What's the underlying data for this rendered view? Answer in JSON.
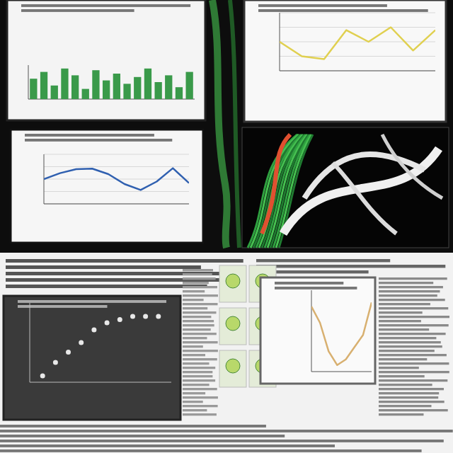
{
  "chart_data": [
    {
      "type": "bar",
      "values": [
        60,
        80,
        40,
        90,
        70,
        30,
        85,
        55,
        75,
        45,
        65,
        90,
        50,
        70,
        35,
        80
      ],
      "color": "#3a9a4a",
      "ylim": [
        0,
        100
      ],
      "tick_labels": false
    },
    {
      "type": "line",
      "values": [
        50,
        25,
        20,
        70,
        50,
        75,
        35,
        70
      ],
      "color": "#e0d050",
      "ylim": [
        0,
        100
      ],
      "yticks": [
        0,
        25,
        50,
        75,
        100
      ],
      "grid": true,
      "tick_labels": false
    },
    {
      "type": "line",
      "values": [
        50,
        62,
        70,
        71,
        60,
        40,
        28,
        45,
        72,
        42
      ],
      "color": "#3060b0",
      "ylim": [
        0,
        100
      ],
      "yticks": [
        0,
        25,
        50,
        75,
        100
      ],
      "grid": true,
      "tick_labels": false
    },
    {
      "type": "scatter",
      "x": [
        1,
        2,
        3,
        4,
        5,
        6,
        7,
        8,
        9,
        10
      ],
      "values": [
        8,
        25,
        38,
        50,
        66,
        75,
        79,
        83,
        83,
        83
      ],
      "color": "#e8e8e8",
      "xlim": [
        0,
        11
      ],
      "ylim": [
        0,
        100
      ],
      "marker": "circle",
      "tick_labels": false
    },
    {
      "type": "line",
      "values": [
        80,
        60,
        25,
        8,
        15,
        30,
        45,
        85
      ],
      "color": "#d8b070",
      "ylim": [
        0,
        100
      ],
      "tick_labels": false
    }
  ]
}
